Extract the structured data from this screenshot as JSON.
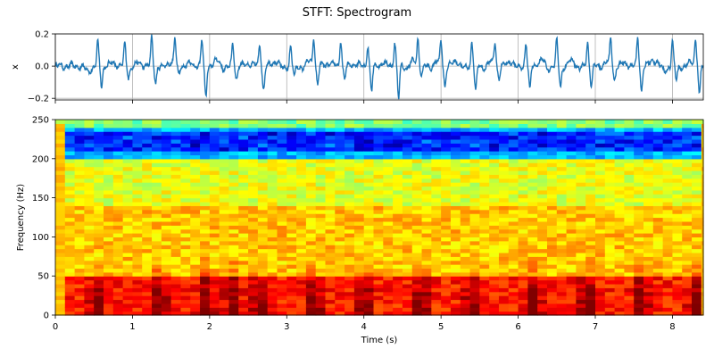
{
  "figure": {
    "title": "STFT: Spectrogram"
  },
  "chart_data": [
    {
      "type": "line",
      "panel": "signal",
      "ylabel": "x",
      "xlabel": "",
      "xlim": [
        0,
        8.4
      ],
      "ylim": [
        -0.21,
        0.2
      ],
      "yticks": [
        -0.2,
        0.0,
        0.2
      ],
      "ytick_labels": [
        "−0.2",
        "0.0",
        "0.2"
      ],
      "xticks": [
        0,
        1,
        2,
        3,
        4,
        5,
        6,
        7,
        8
      ],
      "grid": true,
      "line_color": "#1f77b4",
      "beat_times": [
        0.55,
        0.9,
        1.25,
        1.55,
        1.9,
        2.3,
        2.65,
        3.05,
        3.35,
        3.7,
        4.05,
        4.4,
        4.7,
        5.0,
        5.4,
        5.7,
        6.1,
        6.5,
        6.9,
        7.2,
        7.55,
        8.0,
        8.3
      ],
      "beat_peak_values": [
        0.15,
        0.13,
        0.17,
        0.16,
        0.16,
        0.15,
        0.14,
        0.13,
        0.17,
        0.16,
        0.13,
        0.15,
        0.16,
        0.15,
        0.16,
        0.14,
        0.15,
        0.16,
        0.15,
        0.15,
        0.17,
        0.15,
        0.16
      ],
      "beat_trough_values": [
        -0.12,
        -0.07,
        -0.1,
        -0.05,
        -0.19,
        -0.08,
        -0.15,
        -0.07,
        -0.12,
        -0.09,
        -0.16,
        -0.2,
        -0.06,
        -0.12,
        -0.16,
        -0.08,
        -0.15,
        -0.13,
        -0.12,
        -0.09,
        -0.15,
        -0.08,
        -0.18
      ]
    },
    {
      "type": "heatmap",
      "panel": "spectrogram",
      "xlabel": "Time (s)",
      "ylabel": "Frequency (Hz)",
      "xlim": [
        0,
        8.4
      ],
      "ylim": [
        0,
        250
      ],
      "xticks": [
        0,
        1,
        2,
        3,
        4,
        5,
        6,
        7,
        8
      ],
      "xtick_labels": [
        "0",
        "1",
        "2",
        "3",
        "4",
        "5",
        "6",
        "7",
        "8"
      ],
      "yticks": [
        0,
        50,
        100,
        150,
        200,
        250
      ],
      "ytick_labels": [
        "0",
        "50",
        "100",
        "150",
        "200",
        "250"
      ],
      "colormap": "jet",
      "freq_bin_hz": 5,
      "time_bin_s": 0.125,
      "level_scale": "0 (dark blue) to 1 (dark red)",
      "band_levels": [
        {
          "freq_range": [
            0,
            50
          ],
          "level": 0.85
        },
        {
          "freq_range": [
            50,
            140
          ],
          "level": 0.68
        },
        {
          "freq_range": [
            140,
            200
          ],
          "level": 0.6
        },
        {
          "freq_range": [
            200,
            240
          ],
          "level": 0.3
        },
        {
          "freq_range": [
            240,
            250
          ],
          "level": 0.5
        }
      ],
      "low_freq_bursts_at_times": [
        0.55,
        1.35,
        1.95,
        2.3,
        2.65,
        3.35,
        4.0,
        4.75,
        5.4,
        6.2,
        6.9,
        7.6,
        8.3
      ]
    }
  ]
}
